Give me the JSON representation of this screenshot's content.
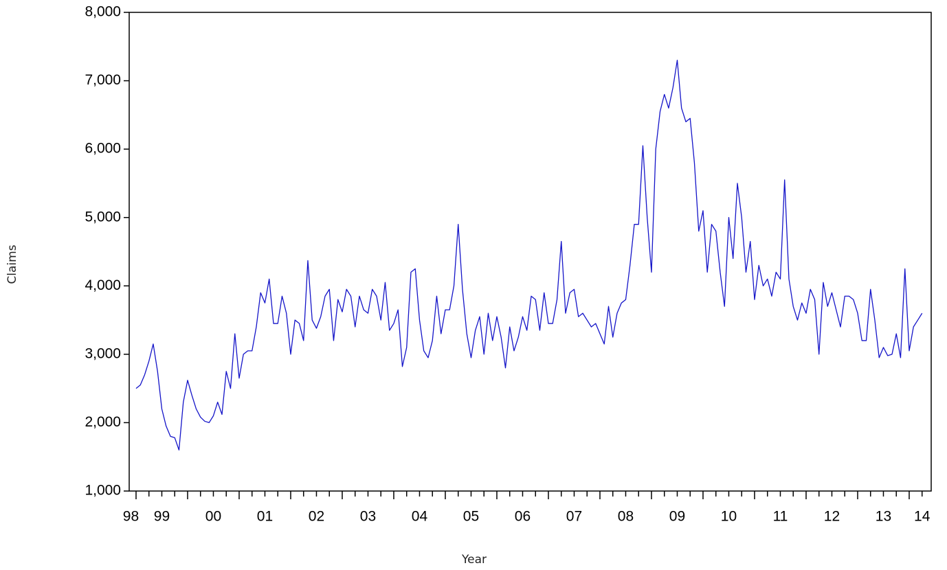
{
  "chart_data": {
    "type": "line",
    "xlabel": "Year",
    "ylabel": "Claims",
    "color": "#1414c8",
    "xlim": [
      1998.867,
      2014.427
    ],
    "ylim": [
      1000,
      8000
    ],
    "yticks": [
      {
        "value": 1000,
        "label": "1,000"
      },
      {
        "value": 2000,
        "label": "2,000"
      },
      {
        "value": 3000,
        "label": "3,000"
      },
      {
        "value": 4000,
        "label": "4,000"
      },
      {
        "value": 5000,
        "label": "5,000"
      },
      {
        "value": 6000,
        "label": "6,000"
      },
      {
        "value": 7000,
        "label": "7,000"
      },
      {
        "value": 8000,
        "label": "8,000"
      }
    ],
    "xticks": [
      {
        "value": 1998.9,
        "label": "98"
      },
      {
        "value": 1999.5,
        "label": "99"
      },
      {
        "value": 2000.5,
        "label": "00"
      },
      {
        "value": 2001.5,
        "label": "01"
      },
      {
        "value": 2002.5,
        "label": "02"
      },
      {
        "value": 2003.5,
        "label": "03"
      },
      {
        "value": 2004.5,
        "label": "04"
      },
      {
        "value": 2005.5,
        "label": "05"
      },
      {
        "value": 2006.5,
        "label": "06"
      },
      {
        "value": 2007.5,
        "label": "07"
      },
      {
        "value": 2008.5,
        "label": "08"
      },
      {
        "value": 2009.5,
        "label": "09"
      },
      {
        "value": 2010.5,
        "label": "10"
      },
      {
        "value": 2011.5,
        "label": "11"
      },
      {
        "value": 2012.5,
        "label": "12"
      },
      {
        "value": 2013.5,
        "label": "13"
      },
      {
        "value": 2014.25,
        "label": "14"
      }
    ],
    "xtick_marks": [
      1999,
      1999.25,
      1999.5,
      1999.75,
      2000,
      2000.25,
      2000.5,
      2000.75,
      2001,
      2001.25,
      2001.5,
      2001.75,
      2002,
      2002.25,
      2002.5,
      2002.75,
      2003,
      2003.25,
      2003.5,
      2003.75,
      2004,
      2004.25,
      2004.5,
      2004.75,
      2005,
      2005.25,
      2005.5,
      2005.75,
      2006,
      2006.25,
      2006.5,
      2006.75,
      2007,
      2007.25,
      2007.5,
      2007.75,
      2008,
      2008.25,
      2008.5,
      2008.75,
      2009,
      2009.25,
      2009.5,
      2009.75,
      2010,
      2010.25,
      2010.5,
      2010.75,
      2011,
      2011.25,
      2011.5,
      2011.75,
      2012,
      2012.25,
      2012.5,
      2012.75,
      2013,
      2013.25,
      2013.5,
      2013.75,
      2014,
      2014.25
    ],
    "x": [
      1999,
      1999.083,
      1999.167,
      1999.25,
      1999.333,
      1999.417,
      1999.5,
      1999.583,
      1999.667,
      1999.75,
      1999.833,
      1999.917,
      2000,
      2000.083,
      2000.167,
      2000.25,
      2000.333,
      2000.417,
      2000.5,
      2000.583,
      2000.667,
      2000.75,
      2000.833,
      2000.917,
      2001,
      2001.083,
      2001.167,
      2001.25,
      2001.333,
      2001.417,
      2001.5,
      2001.583,
      2001.667,
      2001.75,
      2001.833,
      2001.917,
      2002,
      2002.083,
      2002.167,
      2002.25,
      2002.333,
      2002.417,
      2002.5,
      2002.583,
      2002.667,
      2002.75,
      2002.833,
      2002.917,
      2003,
      2003.083,
      2003.167,
      2003.25,
      2003.333,
      2003.417,
      2003.5,
      2003.583,
      2003.667,
      2003.75,
      2003.833,
      2003.917,
      2004,
      2004.083,
      2004.167,
      2004.25,
      2004.333,
      2004.417,
      2004.5,
      2004.583,
      2004.667,
      2004.75,
      2004.833,
      2004.917,
      2005,
      2005.083,
      2005.167,
      2005.25,
      2005.333,
      2005.417,
      2005.5,
      2005.583,
      2005.667,
      2005.75,
      2005.833,
      2005.917,
      2006,
      2006.083,
      2006.167,
      2006.25,
      2006.333,
      2006.417,
      2006.5,
      2006.583,
      2006.667,
      2006.75,
      2006.833,
      2006.917,
      2007,
      2007.083,
      2007.167,
      2007.25,
      2007.333,
      2007.417,
      2007.5,
      2007.583,
      2007.667,
      2007.75,
      2007.833,
      2007.917,
      2008,
      2008.083,
      2008.167,
      2008.25,
      2008.333,
      2008.417,
      2008.5,
      2008.583,
      2008.667,
      2008.75,
      2008.833,
      2008.917,
      2009,
      2009.083,
      2009.167,
      2009.25,
      2009.333,
      2009.417,
      2009.5,
      2009.583,
      2009.667,
      2009.75,
      2009.833,
      2009.917,
      2010,
      2010.083,
      2010.167,
      2010.25,
      2010.333,
      2010.417,
      2010.5,
      2010.583,
      2010.667,
      2010.75,
      2010.833,
      2010.917,
      2011,
      2011.083,
      2011.167,
      2011.25,
      2011.333,
      2011.417,
      2011.5,
      2011.583,
      2011.667,
      2011.75,
      2011.833,
      2011.917,
      2012,
      2012.083,
      2012.167,
      2012.25,
      2012.333,
      2012.417,
      2012.5,
      2012.583,
      2012.667,
      2012.75,
      2012.833,
      2012.917,
      2013,
      2013.083,
      2013.167,
      2013.25,
      2013.333,
      2013.417,
      2013.5,
      2013.583,
      2013.667,
      2013.75,
      2013.833,
      2013.917,
      2014,
      2014.083,
      2014.167,
      2014.25
    ],
    "values": [
      2500,
      2550,
      2700,
      2900,
      3150,
      2750,
      2200,
      1950,
      1800,
      1780,
      1600,
      2300,
      2620,
      2400,
      2200,
      2080,
      2020,
      2000,
      2100,
      2300,
      2120,
      2750,
      2500,
      3300,
      2650,
      3000,
      3050,
      3050,
      3400,
      3900,
      3750,
      4100,
      3450,
      3450,
      3850,
      3600,
      3000,
      3500,
      3450,
      3200,
      4370,
      3500,
      3380,
      3550,
      3850,
      3950,
      3200,
      3800,
      3620,
      3950,
      3850,
      3400,
      3850,
      3650,
      3600,
      3950,
      3850,
      3500,
      4050,
      3350,
      3450,
      3650,
      2820,
      3100,
      4200,
      4250,
      3500,
      3050,
      2950,
      3200,
      3850,
      3300,
      3650,
      3650,
      4000,
      4900,
      3950,
      3300,
      2950,
      3350,
      3550,
      3000,
      3600,
      3200,
      3550,
      3250,
      2800,
      3400,
      3050,
      3250,
      3550,
      3350,
      3850,
      3800,
      3350,
      3900,
      3450,
      3450,
      3800,
      4650,
      3600,
      3900,
      3950,
      3550,
      3600,
      3500,
      3400,
      3450,
      3300,
      3150,
      3700,
      3250,
      3600,
      3750,
      3800,
      4300,
      4900,
      4900,
      6050,
      5000,
      4200,
      6000,
      6550,
      6800,
      6600,
      6900,
      7300,
      6600,
      6400,
      6450,
      5800,
      4800,
      5100,
      4200,
      4900,
      4800,
      4200,
      3700,
      5000,
      4400,
      5500,
      5000,
      4200,
      4650,
      3800,
      4300,
      4000,
      4100,
      3850,
      4200,
      4100,
      5550,
      4100,
      3700,
      3500,
      3750,
      3600,
      3950,
      3800,
      3000,
      4050,
      3700,
      3900,
      3650,
      3400,
      3850,
      3850,
      3800,
      3600,
      3200,
      3200,
      3950,
      3500,
      2950,
      3100,
      2980,
      3000,
      3300,
      2950,
      4250,
      3050,
      3400,
      3500,
      3600
    ]
  }
}
